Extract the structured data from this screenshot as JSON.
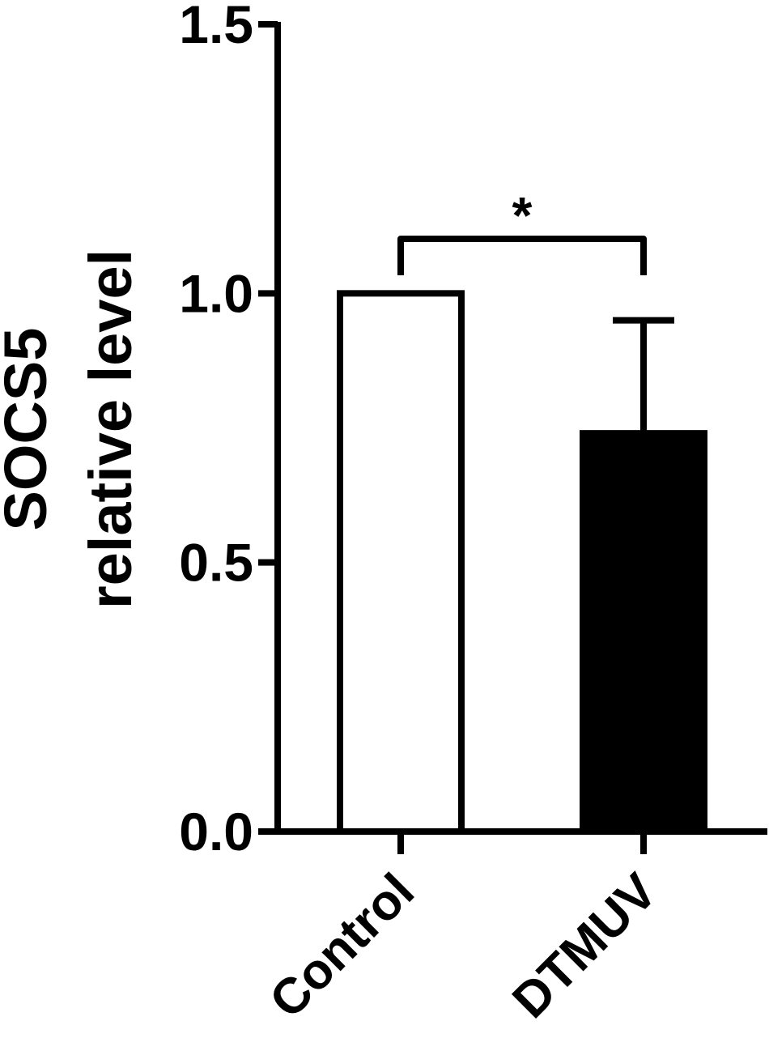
{
  "chart_data": {
    "type": "bar",
    "title": "",
    "xlabel": "",
    "ylabel": [
      "SOCS5",
      "relative level"
    ],
    "ylim": [
      0,
      1.5
    ],
    "yticks": [
      "0.0",
      "0.5",
      "1.0",
      "1.5"
    ],
    "grid": false,
    "categories": [
      "Control",
      "DTMUV"
    ],
    "values": [
      1.0,
      0.74
    ],
    "errors": [
      0.0,
      0.21
    ],
    "bar_colors": [
      "#ffffff",
      "#000000"
    ],
    "significance": {
      "between": [
        "Control",
        "DTMUV"
      ],
      "label": "*"
    }
  }
}
